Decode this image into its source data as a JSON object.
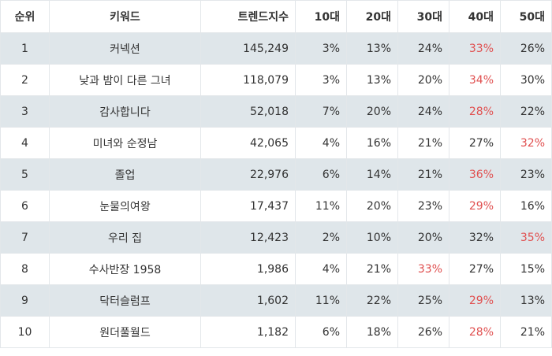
{
  "columns": [
    "순위",
    "키워드",
    "트렌드지수",
    "10대",
    "20대",
    "30대",
    "40대",
    "50대"
  ],
  "colors": {
    "highlight": "#e05050",
    "stripe": "#dfe6ea",
    "text": "#333333"
  },
  "rows": [
    {
      "rank": "1",
      "keyword": "커넥션",
      "trend": "145,249",
      "ages": [
        "3%",
        "13%",
        "24%",
        "33%",
        "26%"
      ],
      "highlight": 3
    },
    {
      "rank": "2",
      "keyword": "낮과 밤이 다른 그녀",
      "trend": "118,079",
      "ages": [
        "3%",
        "13%",
        "20%",
        "34%",
        "30%"
      ],
      "highlight": 3
    },
    {
      "rank": "3",
      "keyword": "감사합니다",
      "trend": "52,018",
      "ages": [
        "7%",
        "20%",
        "24%",
        "28%",
        "22%"
      ],
      "highlight": 3
    },
    {
      "rank": "4",
      "keyword": "미녀와 순정남",
      "trend": "42,065",
      "ages": [
        "4%",
        "16%",
        "21%",
        "27%",
        "32%"
      ],
      "highlight": 4
    },
    {
      "rank": "5",
      "keyword": "졸업",
      "trend": "22,976",
      "ages": [
        "6%",
        "14%",
        "21%",
        "36%",
        "23%"
      ],
      "highlight": 3
    },
    {
      "rank": "6",
      "keyword": "눈물의여왕",
      "trend": "17,437",
      "ages": [
        "11%",
        "20%",
        "23%",
        "29%",
        "16%"
      ],
      "highlight": 3
    },
    {
      "rank": "7",
      "keyword": "우리 집",
      "trend": "12,423",
      "ages": [
        "2%",
        "10%",
        "20%",
        "32%",
        "35%"
      ],
      "highlight": 4
    },
    {
      "rank": "8",
      "keyword": "수사반장 1958",
      "trend": "1,986",
      "ages": [
        "4%",
        "21%",
        "33%",
        "27%",
        "15%"
      ],
      "highlight": 2
    },
    {
      "rank": "9",
      "keyword": "닥터슬럼프",
      "trend": "1,602",
      "ages": [
        "11%",
        "22%",
        "25%",
        "29%",
        "13%"
      ],
      "highlight": 3
    },
    {
      "rank": "10",
      "keyword": "원더풀월드",
      "trend": "1,182",
      "ages": [
        "6%",
        "18%",
        "26%",
        "28%",
        "21%"
      ],
      "highlight": 3
    }
  ]
}
